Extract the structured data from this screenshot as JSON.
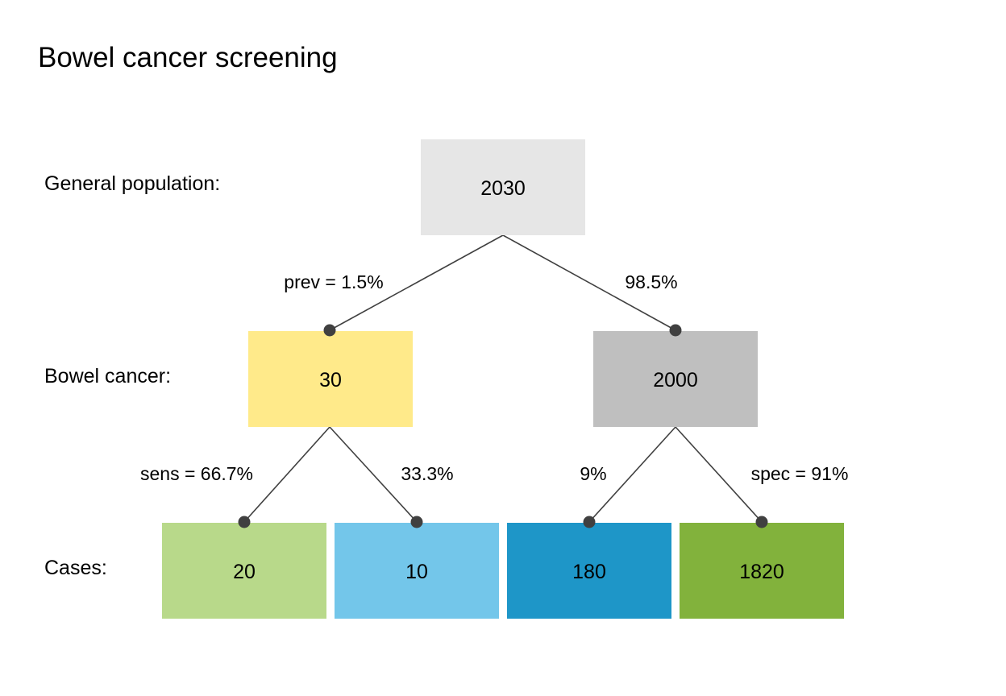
{
  "title": "Bowel cancer screening",
  "row_labels": {
    "population": "General population:",
    "cancer": "Bowel cancer:",
    "cases": "Cases:"
  },
  "nodes": {
    "root": {
      "value": "2030",
      "color": "#e6e6e6"
    },
    "cancer": {
      "value": "30",
      "color": "#ffea8a"
    },
    "no_cancer": {
      "value": "2000",
      "color": "#bfbfbf"
    },
    "true_positive": {
      "value": "20",
      "color": "#b8d98a"
    },
    "false_negative": {
      "value": "10",
      "color": "#73c6ea"
    },
    "false_positive": {
      "value": "180",
      "color": "#1e96c8"
    },
    "true_negative": {
      "value": "1820",
      "color": "#82b23c"
    }
  },
  "edges": {
    "prev": "prev = 1.5%",
    "no_prev": "98.5%",
    "sens": "sens = 66.7%",
    "miss": "33.3%",
    "false_pos_rate": "9%",
    "spec": "spec = 91%"
  },
  "line_color": "#404040"
}
